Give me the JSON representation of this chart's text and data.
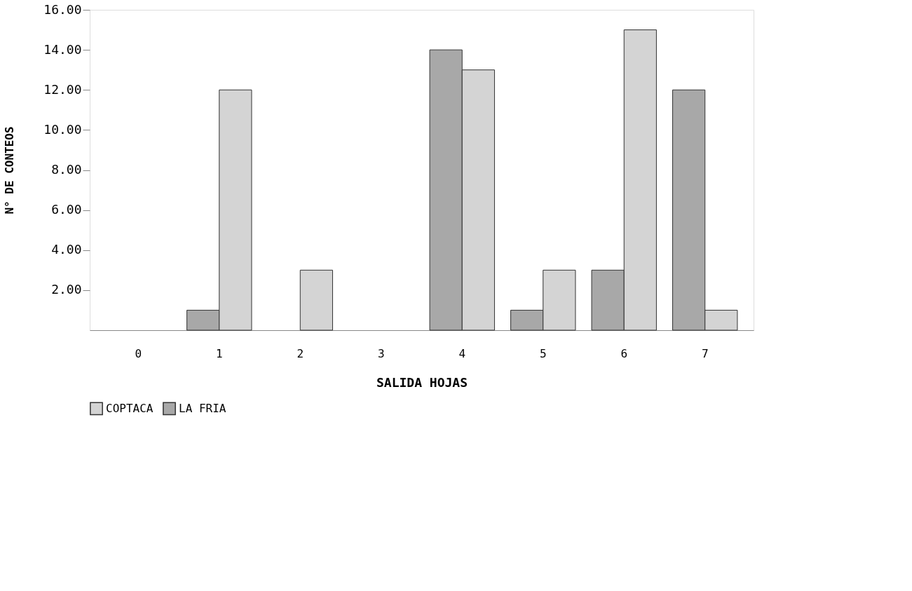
{
  "chart_data": {
    "type": "bar",
    "xlabel": "SALIDA HOJAS",
    "ylabel": "N° DE CONTEOS",
    "categories": [
      "0",
      "1",
      "2",
      "3",
      "4",
      "5",
      "6",
      "7"
    ],
    "series": [
      {
        "name": "LA FRIA",
        "color": "#a8a8a8",
        "values": [
          0,
          1,
          0,
          0,
          14,
          1,
          3,
          12
        ]
      },
      {
        "name": "COPTACA",
        "color": "#d4d4d4",
        "values": [
          0,
          12,
          3,
          0,
          13,
          3,
          15,
          1
        ]
      }
    ],
    "ylim": [
      0,
      16
    ],
    "yticks": [
      {
        "value": 2,
        "label": "2.00"
      },
      {
        "value": 4,
        "label": "4.00"
      },
      {
        "value": 6,
        "label": "6.00"
      },
      {
        "value": 8,
        "label": "8.00"
      },
      {
        "value": 10,
        "label": "10.00"
      },
      {
        "value": 12,
        "label": "12.00"
      },
      {
        "value": 14,
        "label": "14.00"
      },
      {
        "value": 16,
        "label": "16.00"
      }
    ],
    "grid": false,
    "legend": "bottom"
  }
}
